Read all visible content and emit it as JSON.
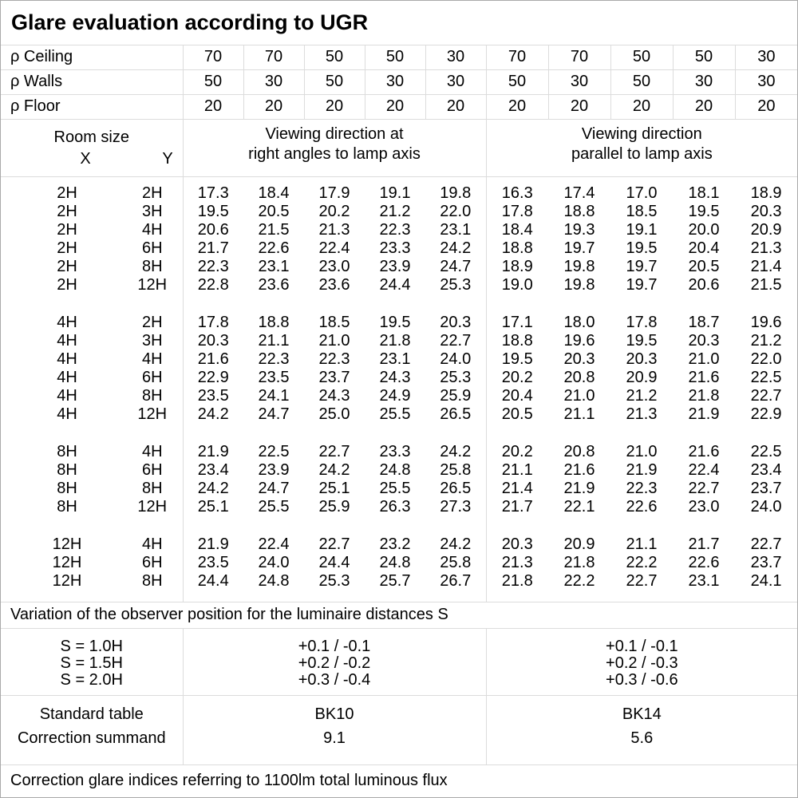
{
  "title": "Glare evaluation according to UGR",
  "colors": {
    "background": "#ffffff",
    "text": "#000000",
    "grid_line": "#dcdcdc",
    "outer_border": "#a9a9a9"
  },
  "reflectance": {
    "rows": [
      {
        "label": "ρ Ceiling",
        "values": [
          70,
          70,
          50,
          50,
          30,
          70,
          70,
          50,
          50,
          30
        ]
      },
      {
        "label": "ρ Walls",
        "values": [
          50,
          30,
          50,
          30,
          30,
          50,
          30,
          50,
          30,
          30
        ]
      },
      {
        "label": "ρ Floor",
        "values": [
          20,
          20,
          20,
          20,
          20,
          20,
          20,
          20,
          20,
          20
        ]
      }
    ]
  },
  "header": {
    "room_size_label": "Room size",
    "x_label": "X",
    "y_label": "Y",
    "group1_line1": "Viewing direction at",
    "group1_line2": "right angles to lamp axis",
    "group2_line1": "Viewing direction",
    "group2_line2": "parallel to lamp axis"
  },
  "ugr_table": {
    "groups": [
      {
        "rows": [
          {
            "x": "2H",
            "y": "2H",
            "right_angles": [
              "17.3",
              "18.4",
              "17.9",
              "19.1",
              "19.8"
            ],
            "parallel": [
              "16.3",
              "17.4",
              "17.0",
              "18.1",
              "18.9"
            ]
          },
          {
            "x": "2H",
            "y": "3H",
            "right_angles": [
              "19.5",
              "20.5",
              "20.2",
              "21.2",
              "22.0"
            ],
            "parallel": [
              "17.8",
              "18.8",
              "18.5",
              "19.5",
              "20.3"
            ]
          },
          {
            "x": "2H",
            "y": "4H",
            "right_angles": [
              "20.6",
              "21.5",
              "21.3",
              "22.3",
              "23.1"
            ],
            "parallel": [
              "18.4",
              "19.3",
              "19.1",
              "20.0",
              "20.9"
            ]
          },
          {
            "x": "2H",
            "y": "6H",
            "right_angles": [
              "21.7",
              "22.6",
              "22.4",
              "23.3",
              "24.2"
            ],
            "parallel": [
              "18.8",
              "19.7",
              "19.5",
              "20.4",
              "21.3"
            ]
          },
          {
            "x": "2H",
            "y": "8H",
            "right_angles": [
              "22.3",
              "23.1",
              "23.0",
              "23.9",
              "24.7"
            ],
            "parallel": [
              "18.9",
              "19.8",
              "19.7",
              "20.5",
              "21.4"
            ]
          },
          {
            "x": "2H",
            "y": "12H",
            "right_angles": [
              "22.8",
              "23.6",
              "23.6",
              "24.4",
              "25.3"
            ],
            "parallel": [
              "19.0",
              "19.8",
              "19.7",
              "20.6",
              "21.5"
            ]
          }
        ]
      },
      {
        "rows": [
          {
            "x": "4H",
            "y": "2H",
            "right_angles": [
              "17.8",
              "18.8",
              "18.5",
              "19.5",
              "20.3"
            ],
            "parallel": [
              "17.1",
              "18.0",
              "17.8",
              "18.7",
              "19.6"
            ]
          },
          {
            "x": "4H",
            "y": "3H",
            "right_angles": [
              "20.3",
              "21.1",
              "21.0",
              "21.8",
              "22.7"
            ],
            "parallel": [
              "18.8",
              "19.6",
              "19.5",
              "20.3",
              "21.2"
            ]
          },
          {
            "x": "4H",
            "y": "4H",
            "right_angles": [
              "21.6",
              "22.3",
              "22.3",
              "23.1",
              "24.0"
            ],
            "parallel": [
              "19.5",
              "20.3",
              "20.3",
              "21.0",
              "22.0"
            ]
          },
          {
            "x": "4H",
            "y": "6H",
            "right_angles": [
              "22.9",
              "23.5",
              "23.7",
              "24.3",
              "25.3"
            ],
            "parallel": [
              "20.2",
              "20.8",
              "20.9",
              "21.6",
              "22.5"
            ]
          },
          {
            "x": "4H",
            "y": "8H",
            "right_angles": [
              "23.5",
              "24.1",
              "24.3",
              "24.9",
              "25.9"
            ],
            "parallel": [
              "20.4",
              "21.0",
              "21.2",
              "21.8",
              "22.7"
            ]
          },
          {
            "x": "4H",
            "y": "12H",
            "right_angles": [
              "24.2",
              "24.7",
              "25.0",
              "25.5",
              "26.5"
            ],
            "parallel": [
              "20.5",
              "21.1",
              "21.3",
              "21.9",
              "22.9"
            ]
          }
        ]
      },
      {
        "rows": [
          {
            "x": "8H",
            "y": "4H",
            "right_angles": [
              "21.9",
              "22.5",
              "22.7",
              "23.3",
              "24.2"
            ],
            "parallel": [
              "20.2",
              "20.8",
              "21.0",
              "21.6",
              "22.5"
            ]
          },
          {
            "x": "8H",
            "y": "6H",
            "right_angles": [
              "23.4",
              "23.9",
              "24.2",
              "24.8",
              "25.8"
            ],
            "parallel": [
              "21.1",
              "21.6",
              "21.9",
              "22.4",
              "23.4"
            ]
          },
          {
            "x": "8H",
            "y": "8H",
            "right_angles": [
              "24.2",
              "24.7",
              "25.1",
              "25.5",
              "26.5"
            ],
            "parallel": [
              "21.4",
              "21.9",
              "22.3",
              "22.7",
              "23.7"
            ]
          },
          {
            "x": "8H",
            "y": "12H",
            "right_angles": [
              "25.1",
              "25.5",
              "25.9",
              "26.3",
              "27.3"
            ],
            "parallel": [
              "21.7",
              "22.1",
              "22.6",
              "23.0",
              "24.0"
            ]
          }
        ]
      },
      {
        "rows": [
          {
            "x": "12H",
            "y": "4H",
            "right_angles": [
              "21.9",
              "22.4",
              "22.7",
              "23.2",
              "24.2"
            ],
            "parallel": [
              "20.3",
              "20.9",
              "21.1",
              "21.7",
              "22.7"
            ]
          },
          {
            "x": "12H",
            "y": "6H",
            "right_angles": [
              "23.5",
              "24.0",
              "24.4",
              "24.8",
              "25.8"
            ],
            "parallel": [
              "21.3",
              "21.8",
              "22.2",
              "22.6",
              "23.7"
            ]
          },
          {
            "x": "12H",
            "y": "8H",
            "right_angles": [
              "24.4",
              "24.8",
              "25.3",
              "25.7",
              "26.7"
            ],
            "parallel": [
              "21.8",
              "22.2",
              "22.7",
              "23.1",
              "24.1"
            ]
          }
        ]
      }
    ]
  },
  "variation_note": "Variation of the observer position for the luminaire distances S",
  "spacing": {
    "labels": [
      "S = 1.0H",
      "S = 1.5H",
      "S = 2.0H"
    ],
    "right_angles": [
      "+0.1 / -0.1",
      "+0.2 / -0.2",
      "+0.3 / -0.4"
    ],
    "parallel": [
      "+0.1 / -0.1",
      "+0.2 / -0.3",
      "+0.3 / -0.6"
    ]
  },
  "summary": {
    "labels": [
      "Standard table",
      "Correction summand"
    ],
    "right_angles": [
      "BK10",
      "9.1"
    ],
    "parallel": [
      "BK14",
      "5.6"
    ]
  },
  "bottom_note": "Correction glare indices referring to 1100lm total luminous flux"
}
